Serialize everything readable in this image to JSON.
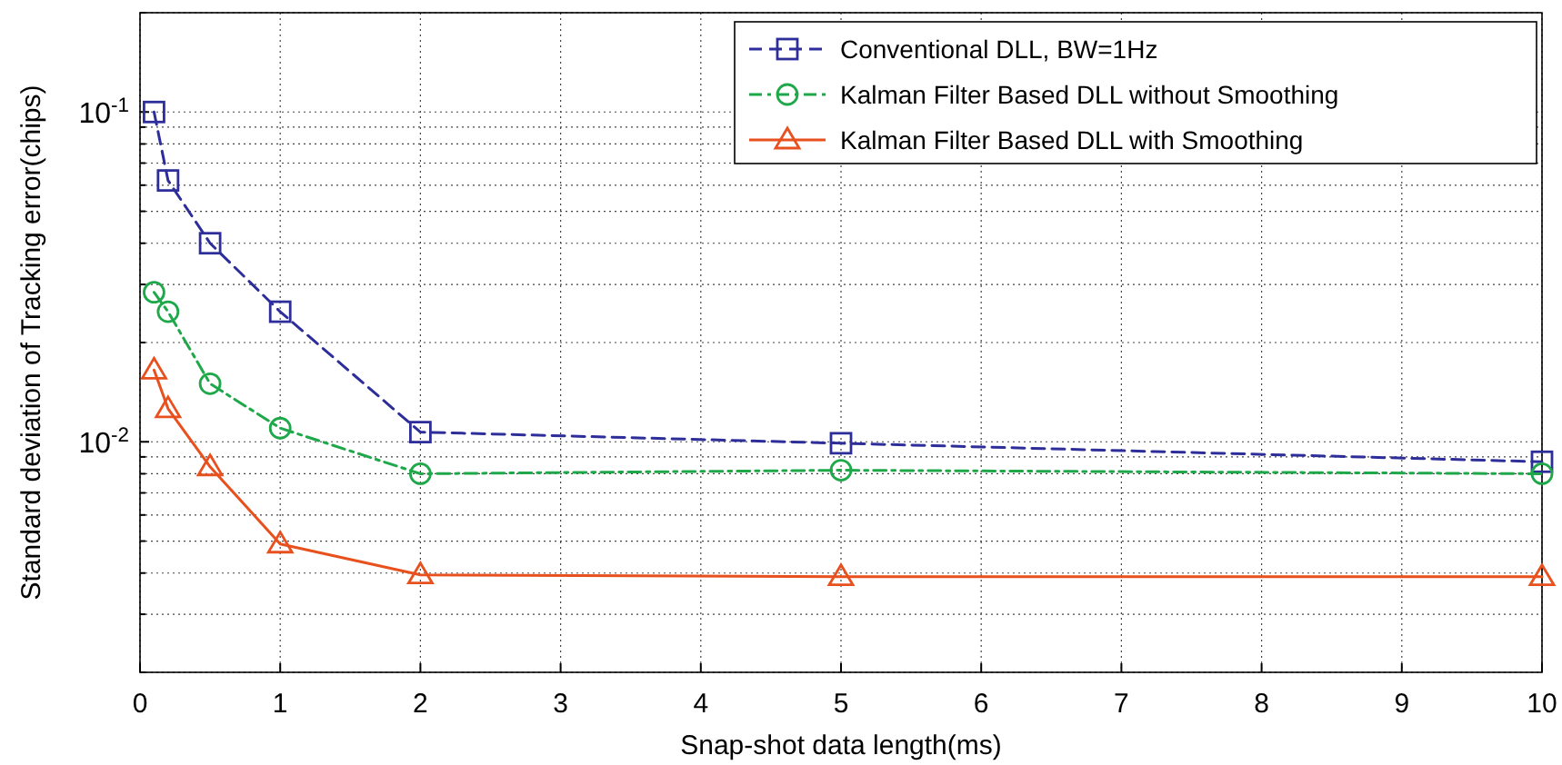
{
  "chart_data": {
    "type": "line",
    "xlabel": "Snap-shot data length(ms)",
    "ylabel": "Standard deviation of Tracking error(chips)",
    "log": "y",
    "grid": true,
    "legend": "top right",
    "xlim": [
      0,
      10
    ],
    "xticks": [
      0,
      1,
      2,
      3,
      4,
      5,
      6,
      7,
      8,
      9,
      10
    ],
    "ylim": [
      0.002,
      0.2
    ],
    "yticks": [
      {
        "value": 0.002,
        "label": null
      },
      {
        "value": 0.003,
        "label": null
      },
      {
        "value": 0.004,
        "label": null
      },
      {
        "value": 0.005,
        "label": null
      },
      {
        "value": 0.006,
        "label": null
      },
      {
        "value": 0.007,
        "label": null
      },
      {
        "value": 0.008,
        "label": null
      },
      {
        "value": 0.009,
        "label": null
      },
      {
        "value": 0.01,
        "label": "10$^{-2}$"
      },
      {
        "value": 0.02,
        "label": null
      },
      {
        "value": 0.03,
        "label": null
      },
      {
        "value": 0.04,
        "label": null
      },
      {
        "value": 0.05,
        "label": null
      },
      {
        "value": 0.06,
        "label": null
      },
      {
        "value": 0.07,
        "label": null
      },
      {
        "value": 0.08,
        "label": null
      },
      {
        "value": 0.09,
        "label": null
      },
      {
        "value": 0.1,
        "label": "10$^{-1}$"
      },
      {
        "value": 0.2,
        "label": null
      }
    ],
    "x": [
      0.1,
      0.2,
      0.5,
      1,
      2,
      5,
      10
    ],
    "series": [
      {
        "name": "Conventional DLL, BW=1Hz",
        "color": "#2e2e9a",
        "marker": "square",
        "line_style": "dashed",
        "values": [
          0.1,
          0.062,
          0.04,
          0.0248,
          0.0107,
          0.0099,
          0.0087
        ]
      },
      {
        "name": "Kalman Filter Based DLL without Smoothing",
        "color": "#1fa84a",
        "marker": "circle",
        "line_style": "dashdot",
        "values": [
          0.0284,
          0.0248,
          0.015,
          0.011,
          0.008,
          0.0082,
          0.008
        ]
      },
      {
        "name": "Kalman Filter Based DLL with Smoothing",
        "color": "#e8501e",
        "marker": "triangle",
        "line_style": "solid",
        "values": [
          0.0165,
          0.0126,
          0.0084,
          0.0049,
          0.00395,
          0.0039,
          0.0039
        ]
      }
    ]
  }
}
